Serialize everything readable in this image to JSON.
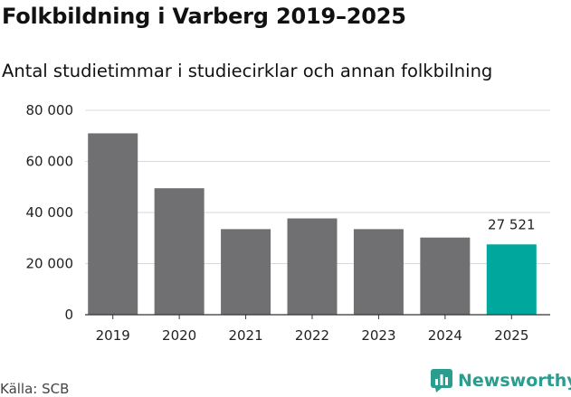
{
  "title": "Folkbildning i Varberg 2019–2025",
  "subtitle": "Antal studietimmar i studiecirklar och annan folkbilning",
  "source": "Källa: SCB",
  "brand": {
    "name": "Newsworthy",
    "icon": "newsworthy-logo-icon"
  },
  "colors": {
    "bar": "#707073",
    "highlight": "#00a79d",
    "grid": "#d9d9d9",
    "brand": "#2a9d8f"
  },
  "chart_data": {
    "type": "bar",
    "title": "Folkbildning i Varberg 2019–2025",
    "subtitle": "Antal studietimmar i studiecirklar och annan folkbilning",
    "categories": [
      "2019",
      "2020",
      "2021",
      "2022",
      "2023",
      "2024",
      "2025"
    ],
    "values": [
      71000,
      49500,
      33500,
      37700,
      33500,
      30200,
      27521
    ],
    "highlight_index": 6,
    "data_labels": [
      {
        "index": 6,
        "text": "27 521"
      }
    ],
    "yticks": [
      {
        "value": 0,
        "label": "0"
      },
      {
        "value": 20000,
        "label": "20 000"
      },
      {
        "value": 40000,
        "label": "40 000"
      },
      {
        "value": 60000,
        "label": "60 000"
      },
      {
        "value": 80000,
        "label": "80 000"
      }
    ],
    "ylim": [
      0,
      80000
    ],
    "xlabel": "",
    "ylabel": "",
    "grid": true
  }
}
